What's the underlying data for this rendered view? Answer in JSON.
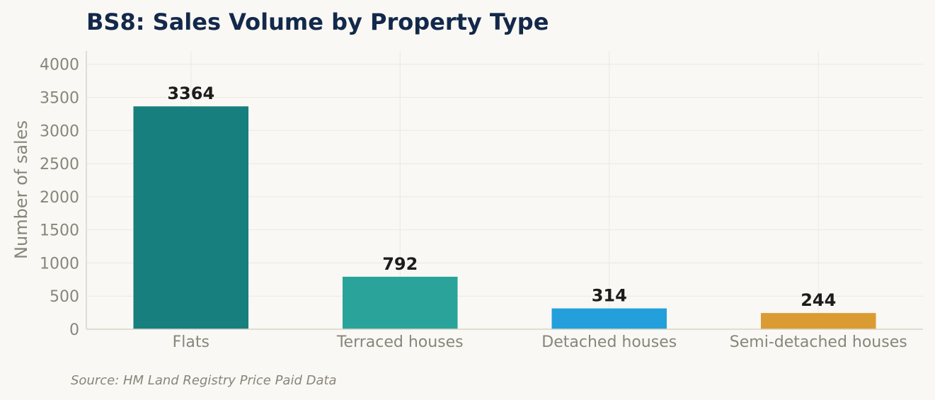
{
  "chart_data": {
    "type": "bar",
    "title": "BS8: Sales Volume by Property Type",
    "xlabel": "",
    "ylabel": "Number of sales",
    "categories": [
      "Flats",
      "Terraced houses",
      "Detached houses",
      "Semi-detached houses"
    ],
    "values": [
      3364,
      792,
      314,
      244
    ],
    "data_labels": [
      "3364",
      "792",
      "314",
      "244"
    ],
    "colors": [
      "#177f7e",
      "#2aa39a",
      "#23a0db",
      "#d99b32"
    ],
    "ylim": [
      0,
      4200
    ],
    "yticks": [
      0,
      500,
      1000,
      1500,
      2000,
      2500,
      3000,
      3500,
      4000
    ],
    "ytick_labels": [
      "0",
      "500",
      "1000",
      "1500",
      "2000",
      "2500",
      "3000",
      "3500",
      "4000"
    ],
    "grid": true,
    "legend": "none"
  },
  "source_note": "Source: HM Land Registry Price Paid Data"
}
